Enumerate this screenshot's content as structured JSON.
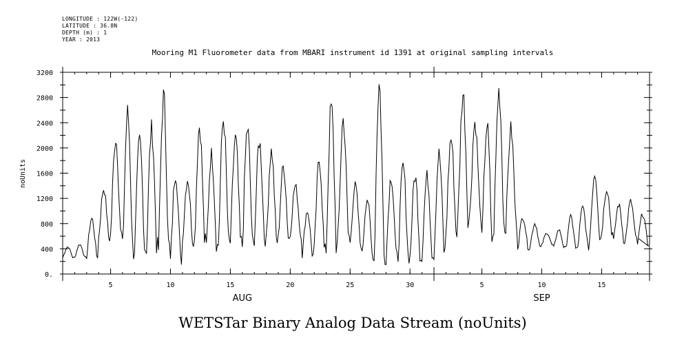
{
  "header": {
    "meta_lines": [
      "LONGITUDE : 122W(-122)",
      "LATITUDE : 36.8N",
      "DEPTH (m) : 1",
      "YEAR : 2013"
    ]
  },
  "chart_data": {
    "type": "line",
    "title": "Mooring M1 Fluorometer data from MBARI instrument id 1391 at original sampling intervals",
    "ylabel": "noUnits",
    "xlabel": "",
    "footer": "WETSTar Binary Analog Data Stream (noUnits)",
    "ylim": [
      0,
      3200
    ],
    "yticks": [
      0,
      400,
      800,
      1200,
      1600,
      2000,
      2400,
      2800,
      3200
    ],
    "ytick_labels": [
      "0.",
      "400",
      "800",
      "1200",
      "1600",
      "2000",
      "2400",
      "2800",
      "3200"
    ],
    "xlim": [
      "2013-08-01",
      "2013-09-19"
    ],
    "xtick_labels": [
      {
        "date": "2013-08-05",
        "label": "5"
      },
      {
        "date": "2013-08-10",
        "label": "10"
      },
      {
        "date": "2013-08-15",
        "label": "15"
      },
      {
        "date": "2013-08-20",
        "label": "20"
      },
      {
        "date": "2013-08-25",
        "label": "25"
      },
      {
        "date": "2013-08-30",
        "label": "30"
      },
      {
        "date": "2013-09-05",
        "label": "5"
      },
      {
        "date": "2013-09-10",
        "label": "10"
      },
      {
        "date": "2013-09-15",
        "label": "15"
      }
    ],
    "month_labels": [
      {
        "date": "2013-08-16",
        "label": "AUG"
      },
      {
        "date": "2013-09-10",
        "label": "SEP"
      }
    ],
    "series": [
      {
        "x": [
          "2013-08-01",
          "2013-08-02",
          "2013-08-03",
          "2013-08-04",
          "2013-08-05",
          "2013-08-06",
          "2013-08-07",
          "2013-08-08",
          "2013-08-09",
          "2013-08-10",
          "2013-08-11",
          "2013-08-12",
          "2013-08-13",
          "2013-08-14",
          "2013-08-15",
          "2013-08-16",
          "2013-08-17",
          "2013-08-18",
          "2013-08-19",
          "2013-08-20",
          "2013-08-21",
          "2013-08-22",
          "2013-08-23",
          "2013-08-24",
          "2013-08-25",
          "2013-08-26",
          "2013-08-27",
          "2013-08-28",
          "2013-08-29",
          "2013-08-30",
          "2013-08-31",
          "2013-09-01",
          "2013-09-02",
          "2013-09-03",
          "2013-09-04",
          "2013-09-05",
          "2013-09-06",
          "2013-09-07",
          "2013-09-08",
          "2013-09-09",
          "2013-09-10",
          "2013-09-11",
          "2013-09-12",
          "2013-09-13",
          "2013-09-14",
          "2013-09-15",
          "2013-09-16",
          "2013-09-17",
          "2013-09-18",
          "2013-09-19"
        ],
        "peaks": [
          430,
          470,
          880,
          1350,
          2150,
          2550,
          2100,
          2300,
          2800,
          1600,
          1500,
          2350,
          1900,
          2450,
          2150,
          2300,
          2100,
          1950,
          1700,
          1400,
          1000,
          1800,
          2650,
          2450,
          1400,
          1200,
          3000,
          1550,
          1700,
          1550,
          1550,
          1900,
          2150,
          2850,
          2400,
          2350,
          2900,
          2300,
          900,
          800,
          650,
          700,
          900,
          1050,
          1600,
          1350,
          1100,
          1150,
          950,
          550
        ],
        "troughs": [
          260,
          260,
          280,
          560,
          620,
          380,
          400,
          420,
          400,
          200,
          520,
          500,
          440,
          480,
          500,
          450,
          570,
          520,
          560,
          620,
          300,
          360,
          420,
          600,
          480,
          300,
          230,
          260,
          280,
          260,
          300,
          340,
          660,
          860,
          960,
          500,
          760,
          780,
          420,
          420,
          460,
          420,
          390,
          420,
          560,
          650,
          520,
          560,
          480,
          500
        ]
      }
    ]
  }
}
